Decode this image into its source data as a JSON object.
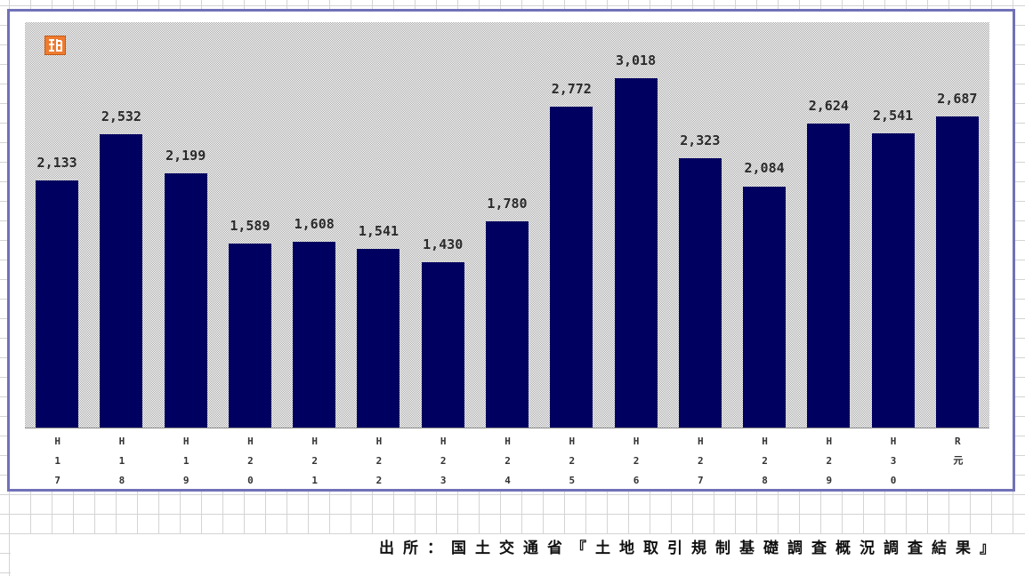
{
  "chart_data": {
    "type": "bar",
    "categories": [
      "H17",
      "H18",
      "H19",
      "H20",
      "H21",
      "H22",
      "H23",
      "H24",
      "H25",
      "H26",
      "H27",
      "H28",
      "H29",
      "H30",
      "R元"
    ],
    "values": [
      2133,
      2532,
      2199,
      1589,
      1608,
      1541,
      1430,
      1780,
      2772,
      3018,
      2323,
      2084,
      2624,
      2541,
      2687
    ],
    "value_labels": [
      "2,133",
      "2,532",
      "2,199",
      "1,589",
      "1,608",
      "1,541",
      "1,430",
      "1,780",
      "2,772",
      "3,018",
      "2,323",
      "2,084",
      "2,624",
      "2,541",
      "2,687"
    ],
    "ylim": [
      0,
      3500
    ],
    "grid": false
  },
  "footer": {
    "source": "出所：国土交通省『土地取引規制基礎調査概況調査結果』"
  },
  "colors": {
    "bar": "#000060",
    "frame_border": "#7171b8",
    "badge": "#ee7b30"
  },
  "icons": {
    "badge": "orange-badge-icon"
  }
}
